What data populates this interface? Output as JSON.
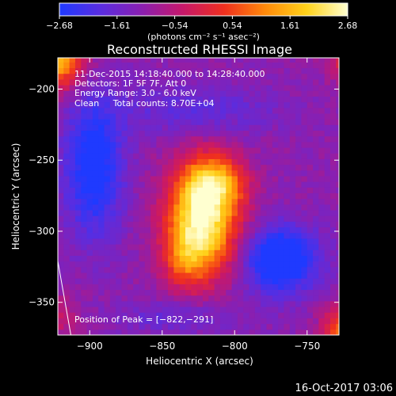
{
  "chart_data": {
    "type": "heatmap",
    "title": "Reconstructed RHESSI Image",
    "xlabel": "Heliocentric X (arcsec)",
    "ylabel": "Heliocentric Y (arcsec)",
    "xlim": [
      -922,
      -728
    ],
    "ylim": [
      -373,
      -178
    ],
    "x_ticks": [
      -900,
      -850,
      -800,
      -750
    ],
    "y_ticks": [
      -200,
      -250,
      -300,
      -350
    ],
    "x_tick_labels": [
      "−900",
      "−850",
      "−800",
      "−750"
    ],
    "y_tick_labels": [
      "−200",
      "−250",
      "−300",
      "−350"
    ],
    "colorbar": {
      "range": [
        -2.68,
        2.68
      ],
      "tick_labels": [
        "−2.68",
        "−1.61",
        "−0.54",
        "0.54",
        "1.61",
        "2.68"
      ],
      "units": "(photons cm⁻² s⁻¹ asec⁻²)",
      "colors": [
        "#1f3aff",
        "#5a2de0",
        "#8a1fb0",
        "#c7186a",
        "#ef2f1e",
        "#ff8a0a",
        "#ffd21a",
        "#ffffd0"
      ]
    },
    "peak": {
      "x": -822,
      "y": -291,
      "value": 2.68
    },
    "limb_line": {
      "x": [
        -922,
        -913
      ],
      "y": [
        -321,
        -373
      ]
    },
    "info_lines": [
      "11-Dec-2015 14:18:40.000 to 14:28:40.000",
      "Detectors: 1F 5F 7F, Att 0",
      "Energy Range: 3.0 - 6.0 keV",
      "Clean     Total counts: 8.70E+04"
    ],
    "peak_label": "Position of Peak = [−822,−291]",
    "grid": false
  },
  "footer": {
    "timestamp": "16-Oct-2017 03:06"
  }
}
